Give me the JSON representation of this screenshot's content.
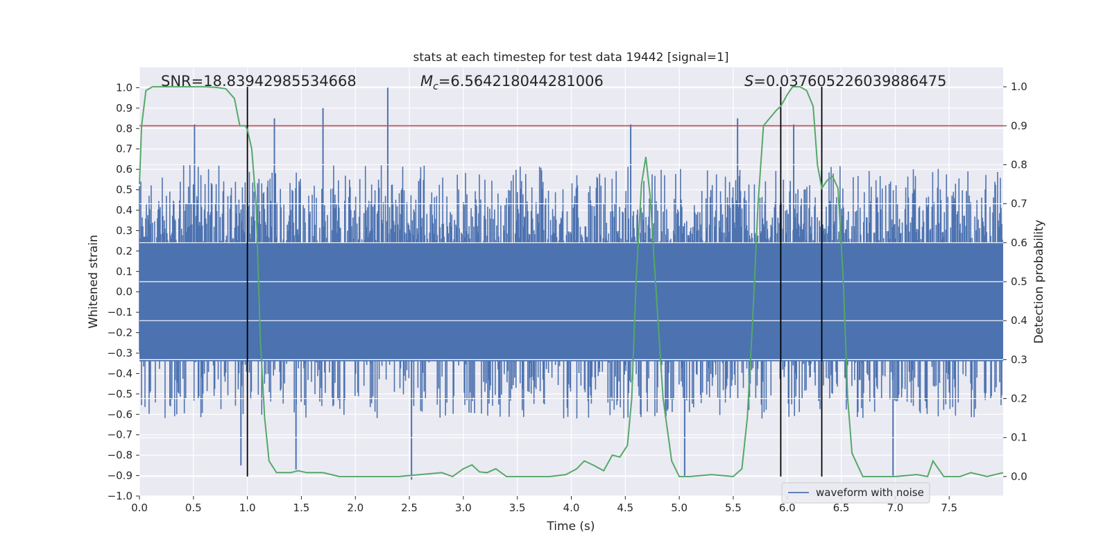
{
  "chart_data": {
    "type": "line",
    "title": "stats at each timestep for test data 19442 [signal=1]",
    "xlabel": "Time (s)",
    "ylabel_left": "Whitened strain",
    "ylabel_right": "Detection probability",
    "xlim": [
      0.0,
      8.0
    ],
    "ylim_left": [
      -1.0,
      1.1
    ],
    "ylim_right": [
      -0.05,
      1.05
    ],
    "x_ticks": [
      "0.0",
      "0.5",
      "1.0",
      "1.5",
      "2.0",
      "2.5",
      "3.0",
      "3.5",
      "4.0",
      "4.5",
      "5.0",
      "5.5",
      "6.0",
      "6.5",
      "7.0",
      "7.5"
    ],
    "x_tick_values": [
      0.0,
      0.5,
      1.0,
      1.5,
      2.0,
      2.5,
      3.0,
      3.5,
      4.0,
      4.5,
      5.0,
      5.5,
      6.0,
      6.5,
      7.0,
      7.5
    ],
    "y_left_ticks": [
      "−1.0",
      "−0.9",
      "−0.8",
      "−0.7",
      "−0.6",
      "−0.5",
      "−0.4",
      "−0.3",
      "−0.2",
      "−0.1",
      "0.0",
      "0.1",
      "0.2",
      "0.3",
      "0.4",
      "0.5",
      "0.6",
      "0.7",
      "0.8",
      "0.9",
      "1.0"
    ],
    "y_left_tick_values": [
      -1.0,
      -0.9,
      -0.8,
      -0.7,
      -0.6,
      -0.5,
      -0.4,
      -0.3,
      -0.2,
      -0.1,
      0.0,
      0.1,
      0.2,
      0.3,
      0.4,
      0.5,
      0.6,
      0.7,
      0.8,
      0.9,
      1.0
    ],
    "y_right_ticks": [
      "0.0",
      "0.1",
      "0.2",
      "0.3",
      "0.4",
      "0.5",
      "0.6",
      "0.7",
      "0.8",
      "0.9",
      "1.0"
    ],
    "y_right_tick_values": [
      0.0,
      0.1,
      0.2,
      0.3,
      0.4,
      0.5,
      0.6,
      0.7,
      0.8,
      0.9,
      1.0
    ],
    "annotations": {
      "snr": "SNR=18.83942985534668",
      "mc_symbol": "M",
      "mc_sub": "c",
      "mc_value": "=6.564218044281006",
      "s_symbol": "S",
      "s_value": "=0.037605226039886475"
    },
    "legend": {
      "label": "waveform with noise",
      "position": "lower-right"
    },
    "threshold": {
      "value": 0.9,
      "axis": "right",
      "color": "#c44e52"
    },
    "vertical_lines": [
      1.0,
      5.94,
      6.32
    ],
    "waveform": {
      "name": "waveform with noise",
      "color": "#4c72b0",
      "dense_lo": -0.34,
      "dense_hi": 0.24,
      "typical_max": 0.62,
      "typical_min": -0.62,
      "extreme_max": 1.0,
      "extreme_min": -0.92,
      "spikes": [
        [
          0.51,
          0.82
        ],
        [
          0.94,
          -0.85
        ],
        [
          1.25,
          0.85
        ],
        [
          1.45,
          -0.87
        ],
        [
          1.7,
          0.9
        ],
        [
          2.3,
          1.0
        ],
        [
          2.52,
          -0.92
        ],
        [
          4.55,
          0.82
        ],
        [
          5.05,
          -0.9
        ],
        [
          5.54,
          0.85
        ],
        [
          6.06,
          0.82
        ],
        [
          6.98,
          -0.9
        ]
      ]
    },
    "probability": {
      "name": "detection probability",
      "color": "#55a868",
      "x": [
        0.0,
        0.02,
        0.06,
        0.12,
        0.2,
        0.3,
        0.4,
        0.5,
        0.6,
        0.7,
        0.8,
        0.88,
        0.93,
        0.98,
        1.0,
        1.04,
        1.08,
        1.12,
        1.16,
        1.2,
        1.27,
        1.33,
        1.4,
        1.47,
        1.55,
        1.7,
        1.85,
        2.0,
        2.2,
        2.4,
        2.6,
        2.8,
        2.9,
        3.0,
        3.08,
        3.15,
        3.22,
        3.3,
        3.4,
        3.6,
        3.8,
        3.95,
        4.05,
        4.12,
        4.2,
        4.3,
        4.38,
        4.45,
        4.52,
        4.56,
        4.6,
        4.65,
        4.69,
        4.73,
        4.78,
        4.85,
        4.93,
        5.0,
        5.1,
        5.3,
        5.5,
        5.58,
        5.63,
        5.68,
        5.73,
        5.78,
        5.84,
        5.9,
        5.94,
        6.0,
        6.05,
        6.12,
        6.18,
        6.24,
        6.28,
        6.32,
        6.37,
        6.42,
        6.47,
        6.52,
        6.56,
        6.6,
        6.7,
        6.9,
        7.0,
        7.2,
        7.3,
        7.35,
        7.45,
        7.6,
        7.7,
        7.85,
        8.0
      ],
      "y": [
        0.75,
        0.9,
        0.99,
        1.0,
        1.0,
        1.0,
        1.0,
        1.0,
        1.0,
        0.999,
        0.995,
        0.97,
        0.9,
        0.9,
        0.89,
        0.84,
        0.7,
        0.35,
        0.15,
        0.04,
        0.01,
        0.01,
        0.01,
        0.015,
        0.01,
        0.01,
        0.0,
        0.0,
        0.0,
        0.0,
        0.005,
        0.01,
        0.0,
        0.02,
        0.03,
        0.012,
        0.01,
        0.02,
        0.0,
        0.0,
        0.0,
        0.005,
        0.02,
        0.04,
        0.03,
        0.015,
        0.055,
        0.05,
        0.08,
        0.2,
        0.5,
        0.75,
        0.82,
        0.72,
        0.5,
        0.2,
        0.04,
        0.0,
        0.0,
        0.005,
        0.0,
        0.02,
        0.15,
        0.4,
        0.7,
        0.9,
        0.92,
        0.94,
        0.95,
        0.98,
        1.0,
        1.0,
        0.99,
        0.95,
        0.8,
        0.74,
        0.76,
        0.77,
        0.74,
        0.5,
        0.2,
        0.06,
        0.0,
        0.0,
        0.0,
        0.005,
        0.0,
        0.04,
        0.0,
        0.0,
        0.01,
        0.0,
        0.01
      ]
    }
  }
}
